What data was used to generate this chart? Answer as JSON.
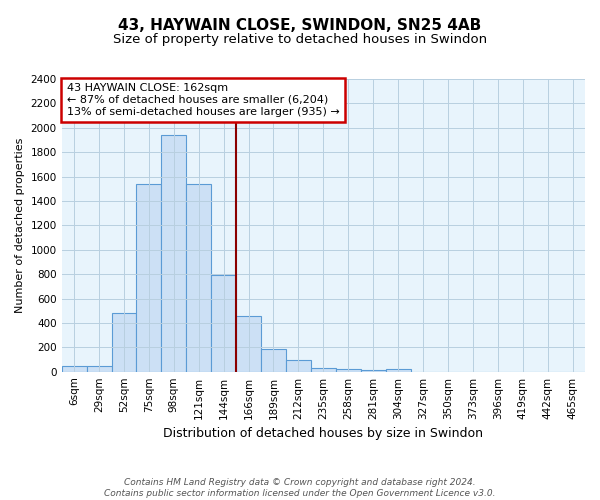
{
  "title": "43, HAYWAIN CLOSE, SWINDON, SN25 4AB",
  "subtitle": "Size of property relative to detached houses in Swindon",
  "xlabel": "Distribution of detached houses by size in Swindon",
  "ylabel": "Number of detached properties",
  "categories": [
    "6sqm",
    "29sqm",
    "52sqm",
    "75sqm",
    "98sqm",
    "121sqm",
    "144sqm",
    "166sqm",
    "189sqm",
    "212sqm",
    "235sqm",
    "258sqm",
    "281sqm",
    "304sqm",
    "327sqm",
    "350sqm",
    "373sqm",
    "396sqm",
    "419sqm",
    "442sqm",
    "465sqm"
  ],
  "values": [
    50,
    50,
    480,
    1540,
    1940,
    1540,
    790,
    460,
    190,
    95,
    30,
    20,
    10,
    20,
    0,
    0,
    0,
    0,
    0,
    0,
    0
  ],
  "bar_color": "#cce0f5",
  "bar_edge_color": "#5b9bd5",
  "vline_color": "#8b0000",
  "annotation_line1": "43 HAYWAIN CLOSE: 162sqm",
  "annotation_line2": "← 87% of detached houses are smaller (6,204)",
  "annotation_line3": "13% of semi-detached houses are larger (935) →",
  "annotation_box_color": "#ffffff",
  "annotation_box_edge_color": "#cc0000",
  "ylim": [
    0,
    2400
  ],
  "yticks": [
    0,
    200,
    400,
    600,
    800,
    1000,
    1200,
    1400,
    1600,
    1800,
    2000,
    2200,
    2400
  ],
  "grid_color": "#b8cfe0",
  "bg_color": "#e8f4fc",
  "footnote_line1": "Contains HM Land Registry data © Crown copyright and database right 2024.",
  "footnote_line2": "Contains public sector information licensed under the Open Government Licence v3.0.",
  "title_fontsize": 11,
  "subtitle_fontsize": 9.5,
  "xlabel_fontsize": 9,
  "ylabel_fontsize": 8,
  "tick_fontsize": 7.5,
  "annotation_fontsize": 8,
  "footnote_fontsize": 6.5
}
